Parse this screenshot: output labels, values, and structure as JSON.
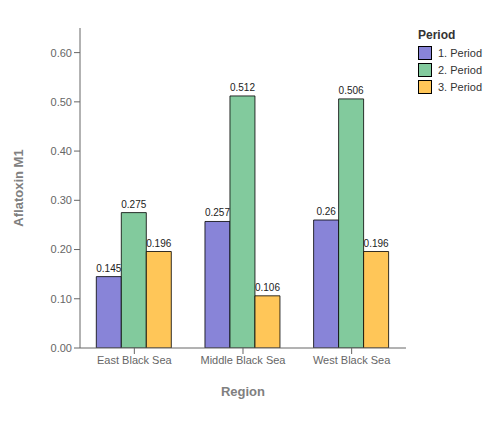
{
  "chart_data": {
    "type": "bar",
    "categories": [
      "East Black Sea",
      "Middle Black Sea",
      "West Black Sea"
    ],
    "series": [
      {
        "name": "1. Period",
        "color": "#8884d8",
        "values": [
          0.145,
          0.257,
          0.26
        ]
      },
      {
        "name": "2. Period",
        "color": "#82ca9d",
        "values": [
          0.275,
          0.512,
          0.506
        ]
      },
      {
        "name": "3. Period",
        "color": "#ffc658",
        "values": [
          0.196,
          0.106,
          0.196
        ]
      }
    ],
    "xlabel": "Region",
    "ylabel": "Aflatoxin M1",
    "legend_title": "Period",
    "ylim": [
      0,
      0.65
    ],
    "yticks": [
      {
        "value": 0,
        "label": "0.00"
      },
      {
        "value": 0.1,
        "label": "0.10"
      },
      {
        "value": 0.2,
        "label": "0.20"
      },
      {
        "value": 0.3,
        "label": "0.30"
      },
      {
        "value": 0.4,
        "label": "0.40"
      },
      {
        "value": 0.5,
        "label": "0.50"
      },
      {
        "value": 0.6,
        "label": "0.60"
      }
    ],
    "grid": false,
    "legend": "right",
    "data_labels": true
  }
}
